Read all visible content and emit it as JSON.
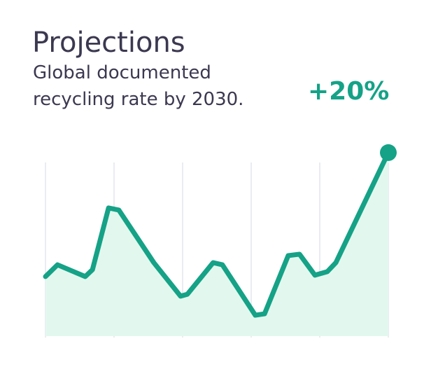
{
  "chart_data": {
    "type": "area",
    "title": "Projections",
    "subtitle_lines": [
      "Global documented",
      "recycling rate by 2030."
    ],
    "annotation": "+20%",
    "color": "#15a287",
    "fill": "#e2f8ee",
    "x": [
      0,
      3.5,
      11.6,
      13.7,
      18.4,
      21.4,
      31.6,
      39.4,
      41.4,
      48.9,
      51.6,
      61.2,
      63.9,
      70.8,
      74.1,
      78.6,
      82.2,
      84.7,
      100
    ],
    "values": [
      30.4,
      36.4,
      30.4,
      33.9,
      65.4,
      64.3,
      37.5,
      20.4,
      21.4,
      37.5,
      36.4,
      10.7,
      11.4,
      41.1,
      41.8,
      31.1,
      32.9,
      37.5,
      93.6
    ],
    "xlim": [
      0,
      100
    ],
    "ylim": [
      0,
      100
    ]
  }
}
